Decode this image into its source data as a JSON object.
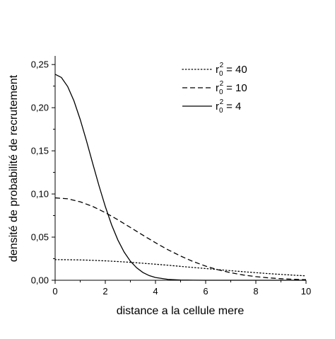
{
  "chart_data": {
    "type": "line",
    "title": "",
    "xlabel": "distance a la cellule mere",
    "ylabel": "densité de probabilité de recrutement",
    "xlim": [
      0,
      10
    ],
    "ylim": [
      0,
      0.26
    ],
    "xticks": [
      "0",
      "2",
      "4",
      "6",
      "8",
      "10"
    ],
    "yticks": [
      "0,00",
      "0,05",
      "0,10",
      "0,15",
      "0,20",
      "0,25"
    ],
    "legend_position": "top-right",
    "grid": false,
    "series": [
      {
        "name": "r₀² = 40",
        "legend_base": "r",
        "legend_sub": "0",
        "legend_sup": "2",
        "legend_value": "= 40",
        "style": "dotted",
        "color": "#000000",
        "x": [
          0,
          0.5,
          1,
          1.5,
          2,
          2.5,
          3,
          3.5,
          4,
          4.5,
          5,
          5.5,
          6,
          6.5,
          7,
          7.5,
          8,
          8.5,
          9,
          9.5,
          10
        ],
        "y": [
          0.0239,
          0.0238,
          0.0236,
          0.0231,
          0.0225,
          0.0217,
          0.0208,
          0.0197,
          0.0186,
          0.0174,
          0.0161,
          0.0148,
          0.0136,
          0.0123,
          0.0111,
          0.0099,
          0.0088,
          0.0077,
          0.0068,
          0.0059,
          0.0051
        ]
      },
      {
        "name": "r₀² = 10",
        "legend_base": "r",
        "legend_sub": "0",
        "legend_sup": "2",
        "legend_value": "= 10",
        "style": "dashed",
        "color": "#000000",
        "x": [
          0,
          0.5,
          1,
          1.5,
          2,
          2.5,
          3,
          3.5,
          4,
          4.5,
          5,
          5.5,
          6,
          6.5,
          7,
          7.5,
          8,
          8.5,
          9,
          9.5,
          10
        ],
        "y": [
          0.0955,
          0.0944,
          0.0909,
          0.0855,
          0.0784,
          0.0701,
          0.0612,
          0.0522,
          0.0435,
          0.0353,
          0.0281,
          0.0217,
          0.0164,
          0.0121,
          0.0087,
          0.0061,
          0.0042,
          0.0028,
          0.0018,
          0.0011,
          0.0007
        ]
      },
      {
        "name": "r₀² = 4",
        "legend_base": "r",
        "legend_sub": "0",
        "legend_sup": "2",
        "legend_value": "= 4",
        "style": "solid",
        "color": "#000000",
        "x": [
          0,
          0.25,
          0.5,
          0.75,
          1,
          1.25,
          1.5,
          1.75,
          2,
          2.25,
          2.5,
          2.75,
          3,
          3.25,
          3.5,
          3.75,
          4,
          4.5,
          5,
          5.5,
          6,
          7,
          8,
          9,
          10
        ],
        "y": [
          0.2387,
          0.235,
          0.2245,
          0.2079,
          0.1863,
          0.1615,
          0.1352,
          0.1094,
          0.0855,
          0.0643,
          0.0467,
          0.0327,
          0.0221,
          0.0144,
          0.009,
          0.0054,
          0.0032,
          0.001,
          0.0003,
          0.0001,
          0.0,
          0.0,
          0.0,
          0.0,
          0.0
        ]
      }
    ]
  }
}
